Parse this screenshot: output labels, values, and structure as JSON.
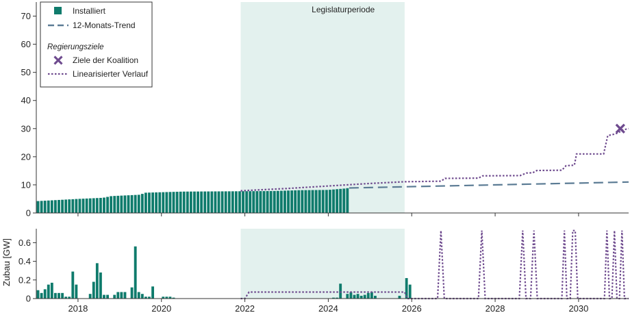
{
  "colors": {
    "installed": "#0f7b6c",
    "trend": "#5b7b94",
    "target": "#6e4a8e",
    "period_band": "#e3f1ee",
    "axis": "#333333"
  },
  "chart_data": [
    {
      "id": "cumulative",
      "type": "bar",
      "title": "",
      "xlabel": "",
      "ylabel": "",
      "xlim": [
        2017.0,
        2031.2
      ],
      "ylim": [
        0,
        75
      ],
      "yticks": [
        0,
        10,
        20,
        30,
        40,
        50,
        60,
        70
      ],
      "xticks": [
        2018,
        2020,
        2022,
        2024,
        2026,
        2028,
        2030
      ],
      "period": {
        "label": "Legislaturperiode",
        "start": 2021.9,
        "end": 2025.83
      },
      "installed": {
        "name": "Installiert",
        "start": 2017.0,
        "end": 2024.5,
        "anchors": [
          [
            2017.0,
            4.2
          ],
          [
            2017.5,
            4.6
          ],
          [
            2018.0,
            5.0
          ],
          [
            2018.6,
            5.4
          ],
          [
            2018.8,
            6.0
          ],
          [
            2019.5,
            6.5
          ],
          [
            2019.6,
            7.2
          ],
          [
            2020.5,
            7.6
          ],
          [
            2022.7,
            7.8
          ],
          [
            2023.3,
            8.1
          ],
          [
            2024.0,
            8.2
          ],
          [
            2024.4,
            8.7
          ],
          [
            2024.5,
            8.9
          ]
        ]
      },
      "trend": {
        "name": "12-Monats-Trend",
        "points": [
          [
            2024.5,
            8.9
          ],
          [
            2031.2,
            11.0
          ]
        ]
      },
      "linearized": {
        "name": "Linearisierter Verlauf",
        "points": [
          [
            2021.9,
            7.9
          ],
          [
            2023.0,
            8.7
          ],
          [
            2024.0,
            9.6
          ],
          [
            2025.0,
            10.5
          ],
          [
            2025.83,
            11.1
          ],
          [
            2026.7,
            11.3
          ],
          [
            2026.8,
            12.3
          ],
          [
            2027.6,
            12.4
          ],
          [
            2027.7,
            13.2
          ],
          [
            2028.6,
            13.3
          ],
          [
            2028.75,
            14.2
          ],
          [
            2028.9,
            14.3
          ],
          [
            2029.0,
            15.1
          ],
          [
            2029.6,
            15.2
          ],
          [
            2029.7,
            16.8
          ],
          [
            2029.9,
            17.0
          ],
          [
            2029.95,
            21.0
          ],
          [
            2030.6,
            21.0
          ],
          [
            2030.7,
            27.5
          ],
          [
            2030.85,
            28.0
          ],
          [
            2030.95,
            28.5
          ],
          [
            2031.05,
            29.5
          ],
          [
            2031.2,
            30.0
          ]
        ]
      },
      "target": {
        "name": "Ziele der Koalition",
        "x": 2031.0,
        "y": 30
      }
    },
    {
      "id": "monthly",
      "type": "bar",
      "title": "",
      "xlabel": "",
      "ylabel": "Zubau [GW]",
      "xlim": [
        2017.0,
        2031.2
      ],
      "ylim": [
        0,
        0.75
      ],
      "yticks": [
        0,
        0.2,
        0.4,
        0.6
      ],
      "ytick_labels": [
        "0",
        "0.2",
        "0.4",
        "0.6"
      ],
      "xticks": [
        2018,
        2020,
        2022,
        2024,
        2026,
        2028,
        2030
      ],
      "xtick_labels": [
        "2018",
        "2020",
        "2022",
        "2024",
        "2026",
        "2028",
        "2030"
      ],
      "period": {
        "start": 2021.9,
        "end": 2025.83
      },
      "monthly_start": 2017.0,
      "monthly_values": [
        0.09,
        0.06,
        0.1,
        0.15,
        0.17,
        0.06,
        0.06,
        0.06,
        0.02,
        0.02,
        0.29,
        0.15,
        0.0,
        0.0,
        0.0,
        0.05,
        0.18,
        0.38,
        0.28,
        0.04,
        0.04,
        0.0,
        0.04,
        0.07,
        0.07,
        0.07,
        0.0,
        0.12,
        0.56,
        0.07,
        0.05,
        0.02,
        0.02,
        0.13,
        0.0,
        0.0,
        0.02,
        0.02,
        0.02,
        0.01,
        0.0,
        0.0,
        0.0,
        0.0,
        0.0,
        0.0,
        0.0,
        0.0,
        0.0,
        0.0,
        0.0,
        0.0,
        0.0,
        0.0,
        0.0,
        0.0,
        0.0,
        0.0,
        0.0,
        0.0,
        0.0,
        0.0,
        0.0,
        0.0,
        0.0,
        0.0,
        0.0,
        0.0,
        0.0,
        0.0,
        0.0,
        0.0,
        0.0,
        0.0,
        0.0,
        0.0,
        0.0,
        0.0,
        0.0,
        0.0,
        0.0,
        0.0,
        0.0,
        0.0,
        0.0,
        0.01,
        0.01,
        0.16,
        0.0,
        0.05,
        0.07,
        0.04,
        0.05,
        0.03,
        0.04,
        0.06,
        0.07,
        0.03,
        0.0,
        0.0,
        0.0,
        0.0,
        0.0,
        0.0,
        0.03,
        0.0,
        0.22,
        0.15,
        0.0,
        0.0
      ],
      "linearized": {
        "name": "Linearisierter Verlauf",
        "points": [
          [
            2021.9,
            0.0
          ],
          [
            2022.0,
            0.0
          ],
          [
            2022.1,
            0.07
          ],
          [
            2025.83,
            0.07
          ],
          [
            2025.9,
            0.0
          ],
          [
            2026.62,
            0.0
          ],
          [
            2026.7,
            0.73
          ],
          [
            2026.78,
            0.0
          ],
          [
            2027.6,
            0.0
          ],
          [
            2027.68,
            0.73
          ],
          [
            2027.76,
            0.0
          ],
          [
            2028.58,
            0.0
          ],
          [
            2028.66,
            0.73
          ],
          [
            2028.74,
            0.0
          ],
          [
            2028.85,
            0.0
          ],
          [
            2028.93,
            0.73
          ],
          [
            2029.01,
            0.0
          ],
          [
            2029.6,
            0.0
          ],
          [
            2029.66,
            0.73
          ],
          [
            2029.72,
            0.0
          ],
          [
            2029.8,
            0.0
          ],
          [
            2029.86,
            0.73
          ],
          [
            2029.92,
            0.73
          ],
          [
            2029.98,
            0.0
          ],
          [
            2030.62,
            0.0
          ],
          [
            2030.68,
            0.73
          ],
          [
            2030.74,
            0.0
          ],
          [
            2030.8,
            0.0
          ],
          [
            2030.86,
            0.73
          ],
          [
            2030.92,
            0.0
          ],
          [
            2030.98,
            0.0
          ],
          [
            2031.04,
            0.73
          ],
          [
            2031.1,
            0.0
          ],
          [
            2031.2,
            0.0
          ]
        ]
      }
    }
  ],
  "legend": {
    "installed": "Installiert",
    "trend": "12-Monats-Trend",
    "section": "Regierungsziele",
    "target": "Ziele der Koalition",
    "linearized": "Linearisierter Verlauf"
  }
}
